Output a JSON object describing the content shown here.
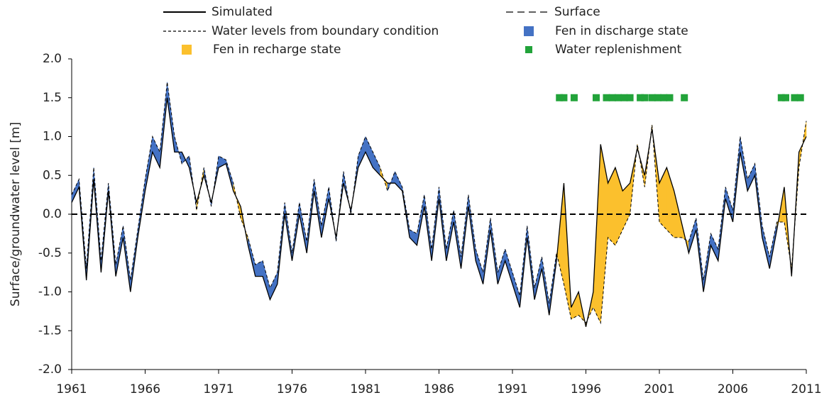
{
  "chart_data": {
    "type": "line",
    "y_label": "Surface/groundwater level [m]",
    "x": [
      1961.0,
      1961.5,
      1962.0,
      1962.5,
      1963.0,
      1963.5,
      1964.0,
      1964.5,
      1965.0,
      1965.5,
      1966.0,
      1966.5,
      1967.0,
      1967.5,
      1968.0,
      1968.5,
      1969.0,
      1969.5,
      1970.0,
      1970.5,
      1971.0,
      1971.5,
      1972.0,
      1972.5,
      1973.0,
      1973.5,
      1974.0,
      1974.5,
      1975.0,
      1975.5,
      1976.0,
      1976.5,
      1977.0,
      1977.5,
      1978.0,
      1978.5,
      1979.0,
      1979.5,
      1980.0,
      1980.5,
      1981.0,
      1981.5,
      1982.0,
      1982.5,
      1983.0,
      1983.5,
      1984.0,
      1984.5,
      1985.0,
      1985.5,
      1986.0,
      1986.5,
      1987.0,
      1987.5,
      1988.0,
      1988.5,
      1989.0,
      1989.5,
      1990.0,
      1990.5,
      1991.0,
      1991.5,
      1992.0,
      1992.5,
      1993.0,
      1993.5,
      1994.0,
      1994.5,
      1995.0,
      1995.5,
      1996.0,
      1996.5,
      1997.0,
      1997.5,
      1998.0,
      1998.5,
      1999.0,
      1999.5,
      2000.0,
      2000.5,
      2001.0,
      2001.5,
      2002.0,
      2002.5,
      2003.0,
      2003.5,
      2004.0,
      2004.5,
      2005.0,
      2005.5,
      2006.0,
      2006.5,
      2007.0,
      2007.5,
      2008.0,
      2008.5,
      2009.0,
      2009.5,
      2010.0,
      2010.5,
      2011.0
    ],
    "series": [
      {
        "name": "Simulated",
        "color": "#000000",
        "style": "solid",
        "values": [
          0.15,
          0.35,
          -0.85,
          0.45,
          -0.75,
          0.3,
          -0.8,
          -0.3,
          -1.0,
          -0.3,
          0.3,
          0.8,
          0.6,
          1.5,
          0.8,
          0.8,
          0.6,
          0.15,
          0.5,
          0.15,
          0.6,
          0.65,
          0.3,
          0.1,
          -0.4,
          -0.8,
          -0.8,
          -1.1,
          -0.9,
          0.0,
          -0.6,
          0.0,
          -0.5,
          0.3,
          -0.3,
          0.2,
          -0.3,
          0.4,
          0.05,
          0.6,
          0.8,
          0.6,
          0.5,
          0.4,
          0.4,
          0.3,
          -0.3,
          -0.4,
          0.1,
          -0.6,
          0.2,
          -0.6,
          -0.1,
          -0.7,
          0.1,
          -0.6,
          -0.9,
          -0.2,
          -0.9,
          -0.6,
          -0.9,
          -1.2,
          -0.3,
          -1.1,
          -0.7,
          -1.3,
          -0.6,
          0.4,
          -1.2,
          -1.0,
          -1.45,
          -1.0,
          0.9,
          0.4,
          0.6,
          0.3,
          0.4,
          0.85,
          0.5,
          1.1,
          0.4,
          0.6,
          0.3,
          -0.1,
          -0.5,
          -0.2,
          -1.0,
          -0.4,
          -0.6,
          0.2,
          -0.1,
          0.8,
          0.3,
          0.5,
          -0.3,
          -0.7,
          -0.2,
          0.35,
          -0.8,
          0.8,
          1.0
        ]
      },
      {
        "name": "Water levels from boundary condition",
        "color": "#000000",
        "style": "dashed",
        "values": [
          0.25,
          0.45,
          -0.7,
          0.6,
          -0.6,
          0.4,
          -0.65,
          -0.15,
          -0.85,
          -0.2,
          0.45,
          1.0,
          0.8,
          1.7,
          1.0,
          0.65,
          0.75,
          0.05,
          0.6,
          0.1,
          0.75,
          0.7,
          0.4,
          -0.05,
          -0.3,
          -0.65,
          -0.6,
          -0.95,
          -0.75,
          0.15,
          -0.5,
          0.15,
          -0.35,
          0.45,
          -0.15,
          0.35,
          -0.35,
          0.55,
          0.0,
          0.75,
          1.0,
          0.8,
          0.6,
          0.3,
          0.55,
          0.35,
          -0.2,
          -0.25,
          0.25,
          -0.45,
          0.35,
          -0.45,
          0.05,
          -0.55,
          0.25,
          -0.45,
          -0.75,
          -0.05,
          -0.75,
          -0.45,
          -0.75,
          -1.05,
          -0.15,
          -0.95,
          -0.55,
          -1.15,
          -0.5,
          -0.9,
          -1.35,
          -1.3,
          -1.4,
          -1.2,
          -1.4,
          -0.3,
          -0.4,
          -0.2,
          0.0,
          0.9,
          0.35,
          1.15,
          -0.1,
          -0.2,
          -0.3,
          -0.3,
          -0.35,
          -0.05,
          -0.85,
          -0.25,
          -0.45,
          0.35,
          0.05,
          1.0,
          0.45,
          0.65,
          -0.15,
          -0.55,
          -0.1,
          -0.1,
          -0.7,
          0.6,
          1.2
        ]
      }
    ],
    "surface": {
      "name": "Surface",
      "color": "#000000",
      "value": 0
    },
    "fills": [
      {
        "name": "Fen in discharge state",
        "color": "#4472c4"
      },
      {
        "name": "Fen in recharge state",
        "color": "#fbc02d"
      }
    ],
    "replenishment": {
      "name": "Water replenishment",
      "color": "#22a33a",
      "x": [
        1994.2,
        1994.5,
        1995.2,
        1996.7,
        1997.4,
        1997.8,
        1998.2,
        1998.6,
        1999.0,
        1999.7,
        2000.0,
        2000.5,
        2000.9,
        2001.3,
        2001.7,
        2002.7,
        2009.3,
        2009.6,
        2010.2,
        2010.6
      ],
      "y": [
        1.5,
        1.5,
        1.5,
        1.5,
        1.5,
        1.5,
        1.5,
        1.5,
        1.5,
        1.5,
        1.5,
        1.5,
        1.5,
        1.5,
        1.5,
        1.5,
        1.5,
        1.5,
        1.5,
        1.5
      ]
    },
    "xlim": [
      1961,
      2011
    ],
    "xticks": [
      1961,
      1966,
      1971,
      1976,
      1981,
      1986,
      1991,
      1996,
      2001,
      2006,
      2011
    ],
    "ylim": [
      -2,
      2
    ],
    "yticks": [
      {
        "value": -2,
        "label": "-2.0"
      },
      -1.5,
      {
        "value": -1,
        "label": "-1.0"
      },
      -0.5,
      {
        "value": 0,
        "label": "0.0"
      },
      0.5,
      {
        "value": 1,
        "label": "1.0"
      },
      1.5,
      {
        "value": 2,
        "label": "2.0"
      }
    ]
  }
}
